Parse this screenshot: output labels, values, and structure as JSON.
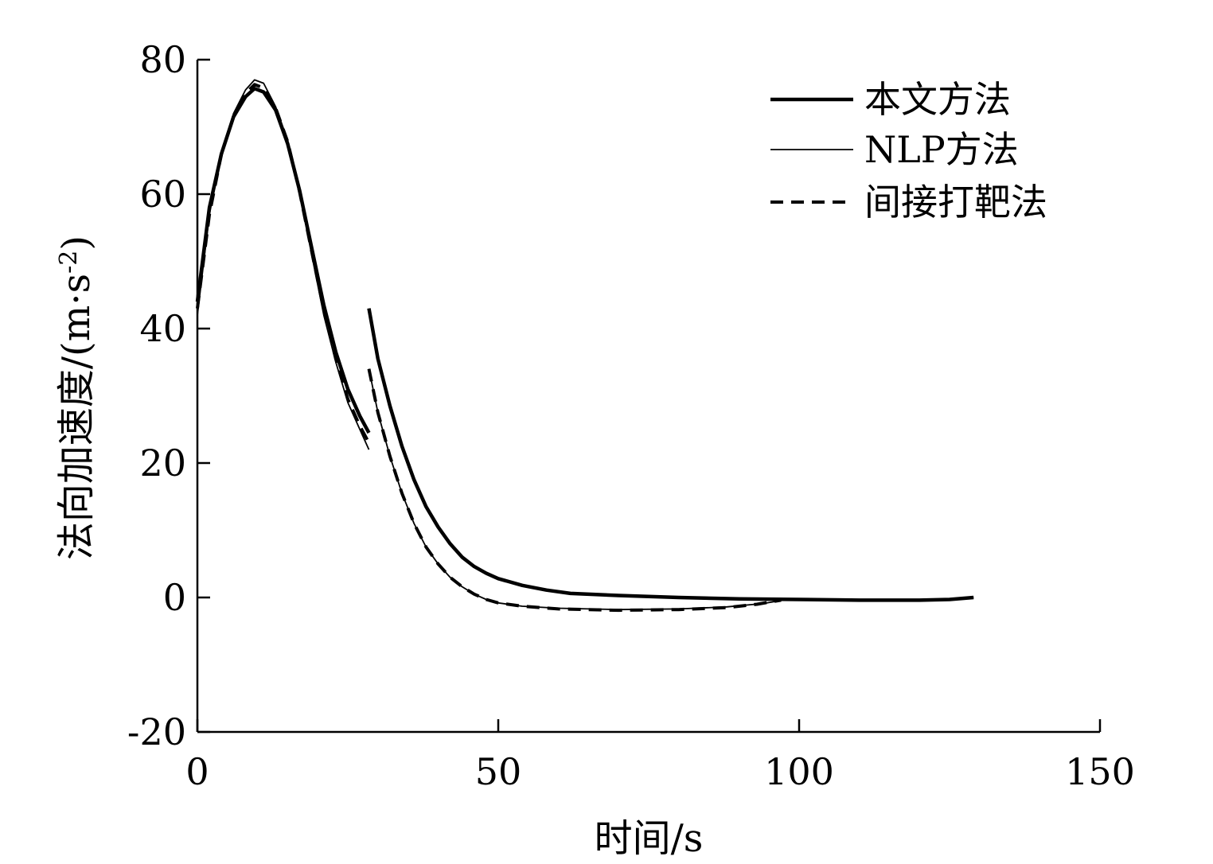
{
  "chart_data": {
    "type": "line",
    "title": "",
    "xlabel": "时间/s",
    "ylabel": "法向加速度/(m·s-2)",
    "ylabel_parts": {
      "main": "法向加速度/(m·s",
      "sup": "-2",
      "close": ")"
    },
    "xlim": [
      0,
      150
    ],
    "ylim": [
      -20,
      80
    ],
    "xticks": [
      0,
      50,
      100,
      150
    ],
    "yticks": [
      -20,
      0,
      20,
      40,
      60,
      80
    ],
    "xtick_labels": [
      "0",
      "50",
      "100",
      "150"
    ],
    "ytick_labels": [
      "-20",
      "0",
      "20",
      "40",
      "60",
      "80"
    ],
    "grid": false,
    "legend_position": "top-right",
    "series": [
      {
        "name": "本文方法",
        "style": "solid-thick",
        "color": "#000000",
        "segments": [
          [
            [
              0,
              44
            ],
            [
              2,
              58
            ],
            [
              4,
              66
            ],
            [
              6,
              71.5
            ],
            [
              8,
              74.5
            ],
            [
              9.5,
              75.7
            ],
            [
              11,
              75.2
            ],
            [
              13,
              72.5
            ],
            [
              15,
              67.5
            ],
            [
              17,
              60.5
            ],
            [
              19,
              52
            ],
            [
              21,
              43.5
            ],
            [
              23,
              36.5
            ],
            [
              25,
              31
            ],
            [
              27,
              27
            ],
            [
              28.5,
              24.5
            ]
          ],
          [
            [
              28.5,
              43
            ],
            [
              30,
              35.5
            ],
            [
              32,
              28.5
            ],
            [
              34,
              22.5
            ],
            [
              36,
              17.5
            ],
            [
              38,
              13.5
            ],
            [
              40,
              10.5
            ],
            [
              42,
              8
            ],
            [
              44,
              6
            ],
            [
              46,
              4.6
            ],
            [
              48,
              3.6
            ],
            [
              50,
              2.8
            ],
            [
              54,
              1.8
            ],
            [
              58,
              1.1
            ],
            [
              62,
              0.6
            ],
            [
              70,
              0.3
            ],
            [
              80,
              0
            ],
            [
              90,
              -0.2
            ],
            [
              100,
              -0.3
            ],
            [
              110,
              -0.4
            ],
            [
              120,
              -0.4
            ],
            [
              125,
              -0.3
            ],
            [
              129,
              0
            ]
          ]
        ]
      },
      {
        "name": "NLP方法",
        "style": "solid-thin",
        "color": "#000000",
        "segments": [
          [
            [
              0,
              42
            ],
            [
              2,
              57
            ],
            [
              4,
              66
            ],
            [
              6,
              72
            ],
            [
              8,
              75.5
            ],
            [
              9.5,
              77
            ],
            [
              11,
              76.5
            ],
            [
              13,
              73
            ],
            [
              15,
              68
            ],
            [
              17,
              60
            ],
            [
              19,
              51
            ],
            [
              21,
              42
            ],
            [
              23,
              35
            ],
            [
              25,
              29
            ],
            [
              27,
              25
            ],
            [
              28.5,
              22
            ]
          ],
          [
            [
              28.5,
              34
            ],
            [
              30,
              27.5
            ],
            [
              32,
              21
            ],
            [
              34,
              15.5
            ],
            [
              36,
              11
            ],
            [
              38,
              7.5
            ],
            [
              40,
              5
            ],
            [
              42,
              3
            ],
            [
              44,
              1.6
            ],
            [
              46,
              0.5
            ],
            [
              48,
              -0.3
            ],
            [
              50,
              -0.8
            ],
            [
              54,
              -1.3
            ],
            [
              60,
              -1.6
            ],
            [
              70,
              -1.8
            ],
            [
              80,
              -1.7
            ],
            [
              88,
              -1.4
            ],
            [
              94,
              -0.9
            ],
            [
              98,
              -0.3
            ],
            [
              105,
              -0.3
            ],
            [
              115,
              -0.4
            ],
            [
              125,
              -0.3
            ],
            [
              129,
              0
            ]
          ]
        ]
      },
      {
        "name": "间接打靶法",
        "style": "dashed",
        "color": "#000000",
        "segments": [
          [
            [
              0,
              43
            ],
            [
              2,
              57
            ],
            [
              4,
              66
            ],
            [
              6,
              71.5
            ],
            [
              8,
              75
            ],
            [
              9.5,
              76.3
            ],
            [
              11,
              75.8
            ],
            [
              13,
              72.8
            ],
            [
              15,
              67.8
            ],
            [
              17,
              60.3
            ],
            [
              19,
              51.5
            ],
            [
              21,
              42.8
            ],
            [
              23,
              35.5
            ],
            [
              25,
              29.5
            ],
            [
              27,
              25.5
            ],
            [
              28.5,
              23
            ]
          ],
          [
            [
              28.5,
              34
            ],
            [
              30,
              27.5
            ],
            [
              32,
              21
            ],
            [
              34,
              15.5
            ],
            [
              36,
              11
            ],
            [
              38,
              7.5
            ],
            [
              40,
              5
            ],
            [
              42,
              3
            ],
            [
              44,
              1.6
            ],
            [
              46,
              0.5
            ],
            [
              48,
              -0.3
            ],
            [
              50,
              -0.8
            ],
            [
              54,
              -1.3
            ],
            [
              60,
              -1.7
            ],
            [
              70,
              -1.9
            ],
            [
              80,
              -1.8
            ],
            [
              88,
              -1.5
            ],
            [
              93,
              -1.0
            ],
            [
              97,
              -0.4
            ]
          ]
        ]
      }
    ]
  }
}
